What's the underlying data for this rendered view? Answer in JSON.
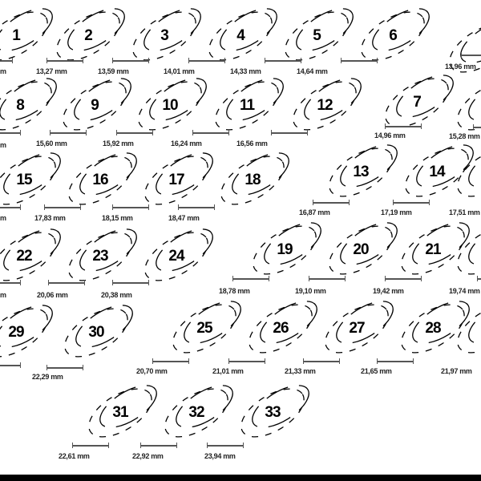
{
  "sizes": [
    {
      "number": "1",
      "measurement": "m"
    },
    {
      "number": "2",
      "measurement": "13,27 mm"
    },
    {
      "number": "3",
      "measurement": "13,59 mm"
    },
    {
      "number": "4",
      "measurement": "14,01 mm"
    },
    {
      "number": "5",
      "measurement": "14,33 mm"
    },
    {
      "number": "6",
      "measurement": "14,64 mm"
    },
    {
      "number": "",
      "measurement": "13,96 mm"
    },
    {
      "number": "8",
      "measurement": "m"
    },
    {
      "number": "9",
      "measurement": "15,60 mm"
    },
    {
      "number": "10",
      "measurement": "15,92 mm"
    },
    {
      "number": "11",
      "measurement": "16,24 mm"
    },
    {
      "number": "12",
      "measurement": "16,56 mm"
    },
    {
      "number": "7",
      "measurement": "14,96 mm"
    },
    {
      "number": "",
      "measurement": "15,28 mm"
    },
    {
      "number": "15",
      "measurement": "m"
    },
    {
      "number": "16",
      "measurement": "17,83 mm"
    },
    {
      "number": "17",
      "measurement": "18,15 mm"
    },
    {
      "number": "18",
      "measurement": "18,47 mm"
    },
    {
      "number": "13",
      "measurement": "16,87 mm"
    },
    {
      "number": "14",
      "measurement": "17,19 mm"
    },
    {
      "number": "",
      "measurement": "17,51 mm"
    },
    {
      "number": "22",
      "measurement": "m"
    },
    {
      "number": "23",
      "measurement": "20,06 mm"
    },
    {
      "number": "24",
      "measurement": "20,38 mm"
    },
    {
      "number": "19",
      "measurement": "18,78 mm"
    },
    {
      "number": "20",
      "measurement": "19,10 mm"
    },
    {
      "number": "21",
      "measurement": "19,42 mm"
    },
    {
      "number": "",
      "measurement": "19,74 mm"
    },
    {
      "number": "29",
      "measurement": ""
    },
    {
      "number": "30",
      "measurement": "22,29 mm"
    },
    {
      "number": "25",
      "measurement": "20,70 mm"
    },
    {
      "number": "26",
      "measurement": "21,01 mm"
    },
    {
      "number": "27",
      "measurement": "21,33 mm"
    },
    {
      "number": "28",
      "measurement": "21,65 mm"
    },
    {
      "number": "",
      "measurement": "21,97 mm"
    },
    {
      "number": "31",
      "measurement": "22,61 mm"
    },
    {
      "number": "32",
      "measurement": "22,92 mm"
    },
    {
      "number": "33",
      "measurement": "23,94 mm"
    }
  ],
  "colors": {
    "ink": "#000000",
    "scale_bar": "#555555",
    "background": "#ffffff"
  }
}
